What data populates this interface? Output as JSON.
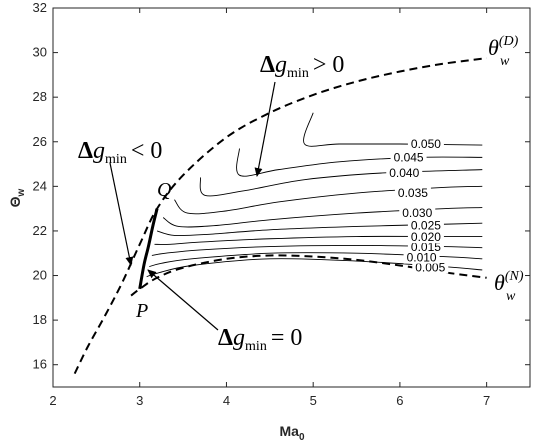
{
  "chart_data": {
    "type": "line",
    "title": "",
    "xlabel": "Ma",
    "xlabel_sub": "0",
    "ylabel": "Θ",
    "ylabel_sub": "w",
    "xlim": [
      2,
      7.5
    ],
    "ylim": [
      15,
      32
    ],
    "xticks": [
      2,
      3,
      4,
      5,
      6,
      7
    ],
    "yticks": [
      16,
      18,
      20,
      22,
      24,
      26,
      28,
      30,
      32
    ],
    "grid": false,
    "detachment_curve": {
      "label": "θ",
      "label_sup": "(D)",
      "label_sub": "w",
      "style": "dashed",
      "points": [
        [
          2.25,
          15.6
        ],
        [
          2.4,
          16.8
        ],
        [
          2.6,
          18.2
        ],
        [
          2.8,
          19.7
        ],
        [
          3.0,
          21.4
        ],
        [
          3.2,
          23.0
        ],
        [
          3.5,
          24.5
        ],
        [
          4.0,
          26.2
        ],
        [
          4.5,
          27.3
        ],
        [
          5.0,
          28.1
        ],
        [
          5.5,
          28.7
        ],
        [
          6.0,
          29.15
        ],
        [
          6.5,
          29.5
        ],
        [
          7.0,
          29.75
        ]
      ]
    },
    "neumann_curve": {
      "label": "θ",
      "label_sup": "(N)",
      "label_sub": "w",
      "style": "dashed",
      "points": [
        [
          2.9,
          19.1
        ],
        [
          3.0,
          19.4
        ],
        [
          3.2,
          19.9
        ],
        [
          3.5,
          20.35
        ],
        [
          4.0,
          20.75
        ],
        [
          4.5,
          20.9
        ],
        [
          5.0,
          20.85
        ],
        [
          5.5,
          20.7
        ],
        [
          6.0,
          20.45
        ],
        [
          6.5,
          20.15
        ],
        [
          7.0,
          19.9
        ]
      ]
    },
    "zero_curve": {
      "label": "Δg_min = 0",
      "points": [
        [
          3.0,
          19.4
        ],
        [
          3.05,
          20.5
        ],
        [
          3.1,
          21.3
        ],
        [
          3.15,
          22.2
        ],
        [
          3.2,
          23.0
        ]
      ]
    },
    "contours": [
      {
        "level": "0.005",
        "points": [
          [
            3.08,
            19.95
          ],
          [
            3.2,
            20.1
          ],
          [
            3.6,
            20.45
          ],
          [
            4.5,
            20.75
          ],
          [
            5.5,
            20.65
          ],
          [
            6.5,
            20.4
          ],
          [
            6.95,
            20.25
          ]
        ]
      },
      {
        "level": "0.010",
        "points": [
          [
            3.11,
            20.4
          ],
          [
            3.25,
            20.55
          ],
          [
            3.6,
            20.75
          ],
          [
            4.5,
            21.0
          ],
          [
            5.5,
            21.0
          ],
          [
            6.5,
            20.85
          ],
          [
            6.95,
            20.75
          ]
        ]
      },
      {
        "level": "0.015",
        "points": [
          [
            3.14,
            20.9
          ],
          [
            3.3,
            21.0
          ],
          [
            3.7,
            21.15
          ],
          [
            4.5,
            21.3
          ],
          [
            5.5,
            21.35
          ],
          [
            6.5,
            21.3
          ],
          [
            6.95,
            21.25
          ]
        ]
      },
      {
        "level": "0.020",
        "points": [
          [
            3.17,
            21.4
          ],
          [
            3.35,
            21.4
          ],
          [
            3.7,
            21.5
          ],
          [
            4.5,
            21.65
          ],
          [
            5.5,
            21.75
          ],
          [
            6.5,
            21.75
          ],
          [
            6.95,
            21.75
          ]
        ]
      },
      {
        "level": "0.025",
        "points": [
          [
            3.2,
            22.0
          ],
          [
            3.4,
            21.8
          ],
          [
            3.8,
            21.85
          ],
          [
            4.5,
            22.05
          ],
          [
            5.5,
            22.2
          ],
          [
            6.5,
            22.3
          ],
          [
            6.95,
            22.35
          ]
        ]
      },
      {
        "level": "0.030",
        "points": [
          [
            3.27,
            22.6
          ],
          [
            3.45,
            22.2
          ],
          [
            3.9,
            22.25
          ],
          [
            4.5,
            22.5
          ],
          [
            5.5,
            22.8
          ],
          [
            6.5,
            23.0
          ],
          [
            6.95,
            23.05
          ]
        ]
      },
      {
        "level": "0.035",
        "points": [
          [
            3.4,
            23.4
          ],
          [
            3.55,
            22.8
          ],
          [
            4.0,
            22.9
          ],
          [
            4.6,
            23.3
          ],
          [
            5.5,
            23.7
          ],
          [
            6.5,
            23.95
          ],
          [
            6.95,
            24.0
          ]
        ]
      },
      {
        "level": "0.040",
        "points": [
          [
            3.7,
            24.4
          ],
          [
            3.75,
            23.6
          ],
          [
            4.2,
            23.8
          ],
          [
            4.9,
            24.3
          ],
          [
            5.8,
            24.6
          ],
          [
            6.95,
            24.75
          ]
        ]
      },
      {
        "level": "0.045",
        "points": [
          [
            4.15,
            25.7
          ],
          [
            4.15,
            24.5
          ],
          [
            4.6,
            24.75
          ],
          [
            5.3,
            25.1
          ],
          [
            6.2,
            25.3
          ],
          [
            6.95,
            25.3
          ]
        ]
      },
      {
        "level": "0.050",
        "points": [
          [
            5.0,
            27.3
          ],
          [
            4.9,
            25.9
          ],
          [
            5.3,
            25.9
          ],
          [
            6.0,
            25.9
          ],
          [
            6.95,
            25.85
          ]
        ]
      }
    ],
    "annotations": {
      "positive": {
        "text": "Δg",
        "sub": "min",
        "rel": "> 0"
      },
      "negative": {
        "text": "Δg",
        "sub": "min",
        "rel": "< 0"
      },
      "zero": {
        "text": "Δg",
        "sub": "min",
        "rel": "= 0"
      },
      "point_q": "Q",
      "point_p": "P"
    }
  }
}
